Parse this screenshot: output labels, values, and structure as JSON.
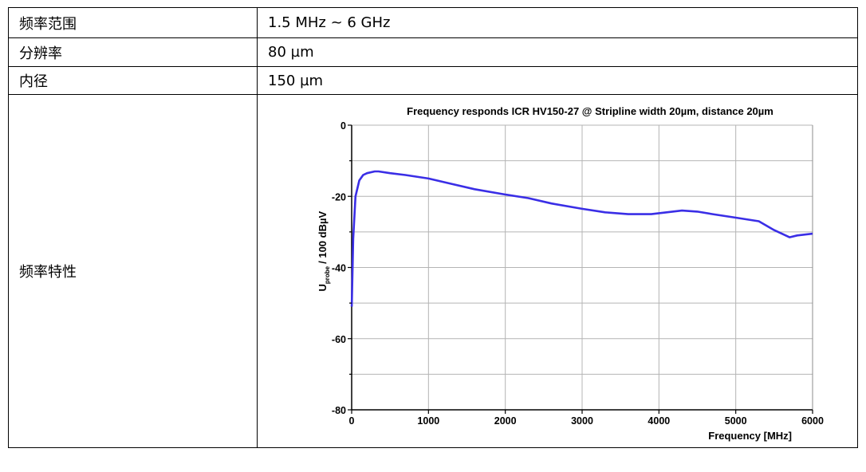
{
  "rows": [
    {
      "label": "频率范围",
      "value": "1.5 MHz ~ 6 GHz"
    },
    {
      "label": "分辨率",
      "value": "80 µm"
    },
    {
      "label": "内径",
      "value": "150 µm"
    },
    {
      "label": "频率特性",
      "value": ""
    }
  ],
  "chart_data": {
    "type": "line",
    "title": "Frequency responds ICR HV150-27 @ Stripline width 20µm, distance 20µm",
    "xlabel": "Frequency [MHz]",
    "ylabel": {
      "main": "U",
      "sub": "probe",
      "rest": "/ 100 dBµV"
    },
    "xlim": [
      0,
      6000
    ],
    "ylim": [
      -80,
      0
    ],
    "xticks": [
      0,
      1000,
      2000,
      3000,
      4000,
      5000,
      6000
    ],
    "yticks": [
      0,
      -20,
      -40,
      -60,
      -80
    ],
    "grid": true,
    "series": [
      {
        "color": "#3a2ee6",
        "x": [
          1.5,
          20,
          50,
          100,
          150,
          200,
          300,
          350,
          500,
          700,
          1000,
          1300,
          1600,
          2000,
          2300,
          2600,
          3000,
          3300,
          3600,
          3900,
          4100,
          4300,
          4500,
          4700,
          5000,
          5300,
          5500,
          5700,
          5800,
          6000
        ],
        "y": [
          -51,
          -32,
          -20,
          -15.5,
          -14,
          -13.5,
          -13,
          -13,
          -13.5,
          -14,
          -15,
          -16.5,
          -18,
          -19.5,
          -20.5,
          -22,
          -23.5,
          -24.5,
          -25,
          -25,
          -24.5,
          -24,
          -24.3,
          -25,
          -26,
          -27,
          -29.5,
          -31.5,
          -31,
          -30.5
        ]
      }
    ]
  }
}
